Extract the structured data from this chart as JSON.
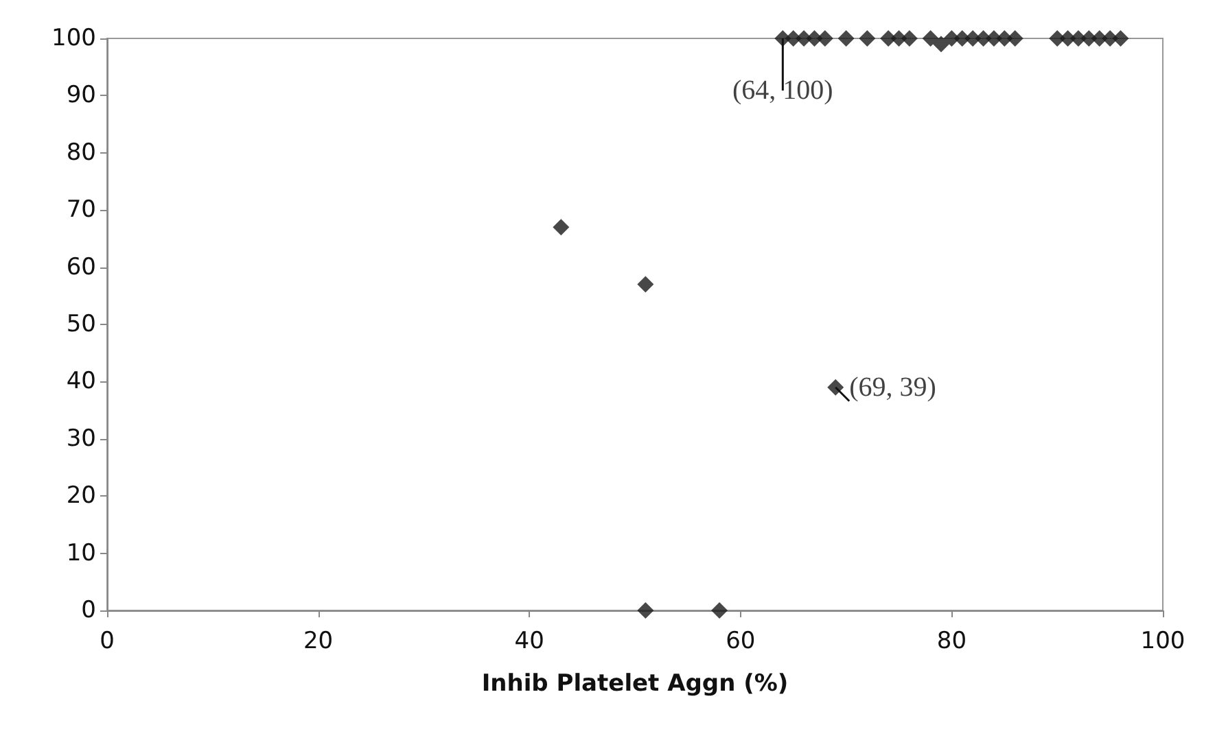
{
  "chart_data": {
    "type": "scatter",
    "xlabel": "Inhib Platelet Aggn (%)",
    "x": [
      43,
      51,
      51,
      58,
      69,
      64,
      65,
      66,
      67,
      68,
      70,
      72,
      74,
      75,
      76,
      78,
      79,
      80,
      81,
      82,
      83,
      84,
      85,
      86,
      90,
      91,
      92,
      93,
      94,
      95,
      96
    ],
    "series": [
      {
        "color": "#1a1a1a",
        "values": [
          67,
          57,
          0,
          0,
          39,
          100,
          100,
          100,
          100,
          100,
          100,
          100,
          100,
          100,
          100,
          100,
          99,
          100,
          100,
          100,
          100,
          100,
          100,
          100,
          100,
          100,
          100,
          100,
          100,
          100,
          100
        ]
      }
    ],
    "xlim": [
      0,
      100
    ],
    "xticks": [
      0,
      20,
      40,
      60,
      80,
      100
    ],
    "ylim": [
      0,
      100
    ],
    "yticks": [
      0,
      10,
      20,
      30,
      40,
      50,
      60,
      70,
      80,
      90,
      100
    ],
    "grid": false,
    "marker": "diamond",
    "annotations": [
      {
        "text": "(64, 100)",
        "x": 64,
        "y": 100
      },
      {
        "text": "(69, 39)",
        "x": 69,
        "y": 39
      }
    ]
  }
}
